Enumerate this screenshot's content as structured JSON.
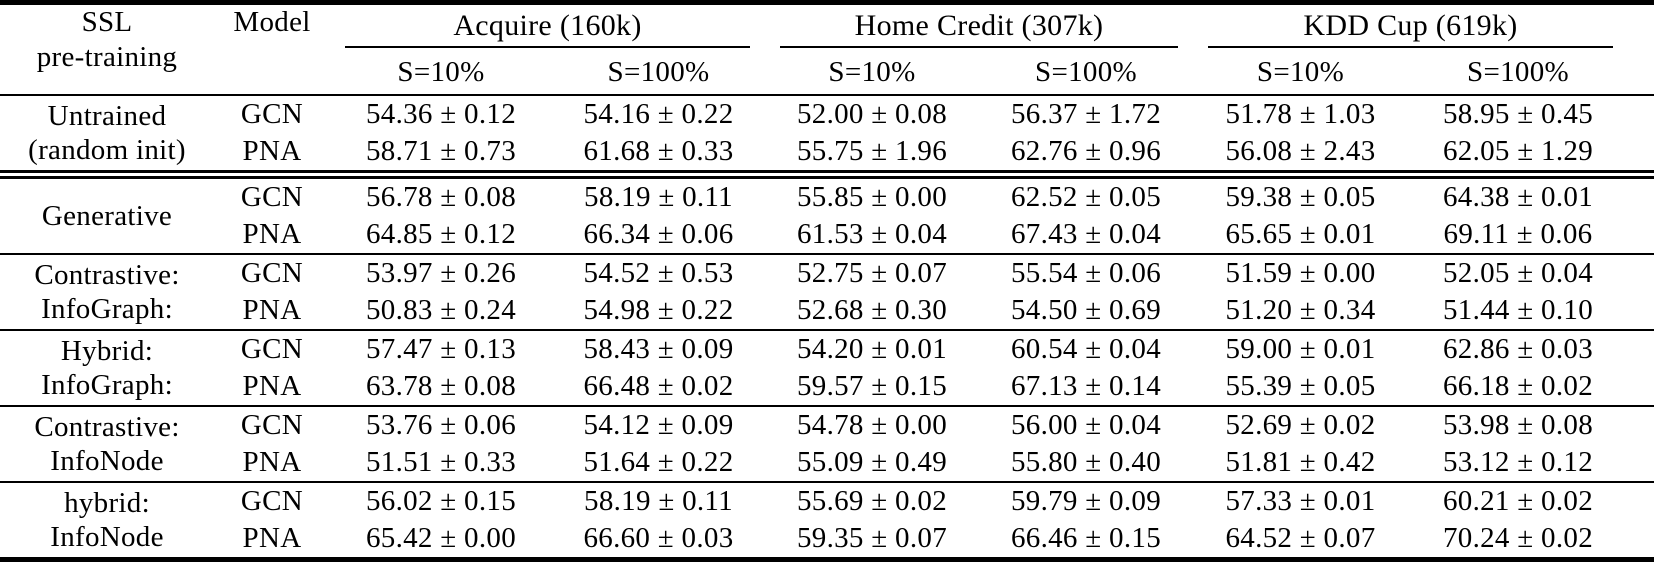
{
  "table": {
    "header": {
      "col1_line1": "SSL",
      "col1_line2": "pre-training",
      "col2": "Model",
      "groups": [
        {
          "label": "Acquire (160k)",
          "subcols": [
            "S=10%",
            "S=100%"
          ]
        },
        {
          "label": "Home Credit (307k)",
          "subcols": [
            "S=10%",
            "S=100%"
          ]
        },
        {
          "label": "KDD Cup (619k)",
          "subcols": [
            "S=10%",
            "S=100%"
          ]
        }
      ]
    },
    "blocks": [
      {
        "ssl_lines": [
          "Untrained",
          "(random init)"
        ],
        "rows": [
          {
            "model": "GCN",
            "values": [
              "54.36 ± 0.12",
              "54.16 ± 0.22",
              "52.00 ± 0.08",
              "56.37 ± 1.72",
              "51.78 ± 1.03",
              "58.95 ± 0.45"
            ]
          },
          {
            "model": "PNA",
            "values": [
              "58.71 ± 0.73",
              "61.68 ± 0.33",
              "55.75 ± 1.96",
              "62.76 ± 0.96",
              "56.08 ± 2.43",
              "62.05 ± 1.29"
            ]
          }
        ]
      },
      {
        "ssl_lines": [
          "Generative"
        ],
        "rows": [
          {
            "model": "GCN",
            "values": [
              "56.78 ± 0.08",
              "58.19 ± 0.11",
              "55.85 ± 0.00",
              "62.52 ± 0.05",
              "59.38 ± 0.05",
              "64.38 ± 0.01"
            ]
          },
          {
            "model": "PNA",
            "values": [
              "64.85 ± 0.12",
              "66.34 ± 0.06",
              "61.53 ± 0.04",
              "67.43 ± 0.04",
              "65.65 ± 0.01",
              "69.11 ± 0.06"
            ]
          }
        ]
      },
      {
        "ssl_lines": [
          "Contrastive:",
          "InfoGraph:"
        ],
        "rows": [
          {
            "model": "GCN",
            "values": [
              "53.97 ± 0.26",
              "54.52 ± 0.53",
              "52.75 ± 0.07",
              "55.54 ± 0.06",
              "51.59 ± 0.00",
              "52.05 ± 0.04"
            ]
          },
          {
            "model": "PNA",
            "values": [
              "50.83 ± 0.24",
              "54.98 ± 0.22",
              "52.68 ± 0.30",
              "54.50 ± 0.69",
              "51.20 ± 0.34",
              "51.44 ± 0.10"
            ]
          }
        ]
      },
      {
        "ssl_lines": [
          "Hybrid:",
          "InfoGraph:"
        ],
        "rows": [
          {
            "model": "GCN",
            "values": [
              "57.47 ± 0.13",
              "58.43 ± 0.09",
              "54.20 ± 0.01",
              "60.54 ± 0.04",
              "59.00 ± 0.01",
              "62.86 ± 0.03"
            ]
          },
          {
            "model": "PNA",
            "values": [
              "63.78 ± 0.08",
              "66.48 ± 0.02",
              "59.57 ± 0.15",
              "67.13 ± 0.14",
              "55.39 ± 0.05",
              "66.18 ± 0.02"
            ]
          }
        ]
      },
      {
        "ssl_lines": [
          "Contrastive:",
          "InfoNode"
        ],
        "rows": [
          {
            "model": "GCN",
            "values": [
              "53.76 ± 0.06",
              "54.12 ± 0.09",
              "54.78 ± 0.00",
              "56.00 ± 0.04",
              "52.69 ± 0.02",
              "53.98 ± 0.08"
            ]
          },
          {
            "model": "PNA",
            "values": [
              "51.51 ± 0.33",
              "51.64 ± 0.22",
              "55.09 ± 0.49",
              "55.80 ± 0.40",
              "51.81 ± 0.42",
              "53.12 ± 0.12"
            ]
          }
        ]
      },
      {
        "ssl_lines": [
          "hybrid:",
          "InfoNode"
        ],
        "rows": [
          {
            "model": "GCN",
            "values": [
              "56.02 ± 0.15",
              "58.19 ± 0.11",
              "55.69 ± 0.02",
              "59.79 ± 0.09",
              "57.33 ± 0.01",
              "60.21 ± 0.02"
            ]
          },
          {
            "model": "PNA",
            "values": [
              "65.42 ± 0.00",
              "66.60 ± 0.03",
              "59.35 ± 0.07",
              "66.46 ± 0.15",
              "64.52 ± 0.07",
              "70.24 ± 0.02"
            ]
          }
        ]
      }
    ]
  }
}
